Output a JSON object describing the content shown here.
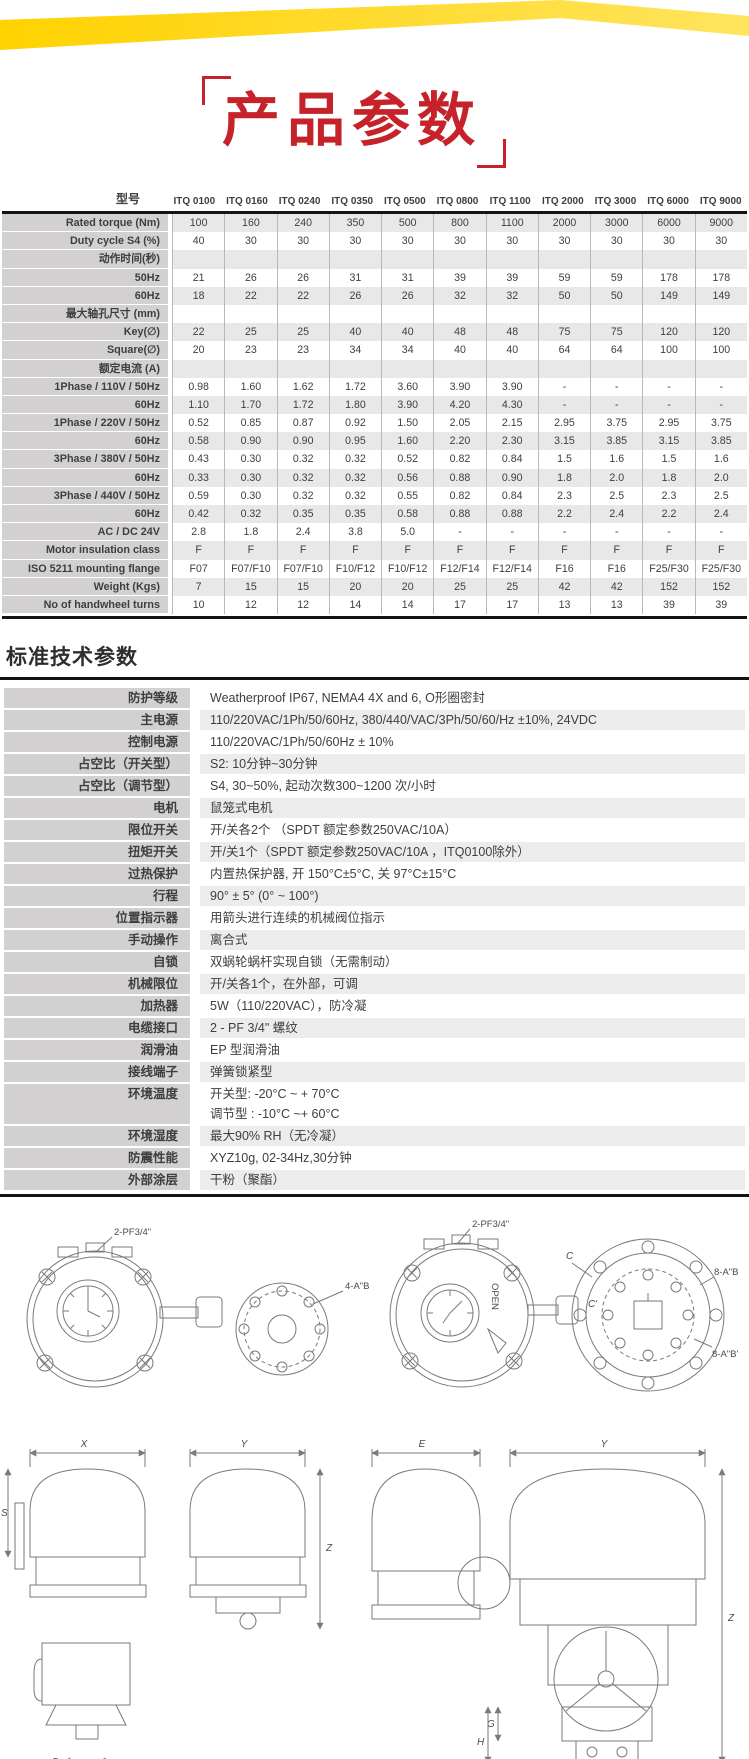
{
  "page": {
    "accent_yellow": "#ffd200",
    "title_red": "#c5222a",
    "label_gray": "#d2d0d0",
    "stripe_gray": "#e9e8e8"
  },
  "title": {
    "text": "产品参数"
  },
  "spec_table": {
    "header_label": "型号",
    "models": [
      "ITQ 0100",
      "ITQ 0160",
      "ITQ 0240",
      "ITQ 0350",
      "ITQ 0500",
      "ITQ 0800",
      "ITQ 1100",
      "ITQ 2000",
      "ITQ 3000",
      "ITQ 6000",
      "ITQ 9000"
    ],
    "rows": [
      {
        "label": "Rated torque (Nm)",
        "type": "data",
        "values": [
          "100",
          "160",
          "240",
          "350",
          "500",
          "800",
          "1100",
          "2000",
          "3000",
          "6000",
          "9000"
        ]
      },
      {
        "label": "Duty cycle S4 (%)",
        "type": "data",
        "values": [
          "40",
          "30",
          "30",
          "30",
          "30",
          "30",
          "30",
          "30",
          "30",
          "30",
          "30"
        ]
      },
      {
        "label": "动作时间(秒)",
        "type": "group",
        "values": []
      },
      {
        "label": "50Hz",
        "type": "data",
        "values": [
          "21",
          "26",
          "26",
          "31",
          "31",
          "39",
          "39",
          "59",
          "59",
          "178",
          "178"
        ]
      },
      {
        "label": "60Hz",
        "type": "data",
        "values": [
          "18",
          "22",
          "22",
          "26",
          "26",
          "32",
          "32",
          "50",
          "50",
          "149",
          "149"
        ]
      },
      {
        "label": "最大轴孔尺寸 (mm)",
        "type": "group",
        "values": []
      },
      {
        "label": "Key(∅)",
        "type": "data",
        "values": [
          "22",
          "25",
          "25",
          "40",
          "40",
          "48",
          "48",
          "75",
          "75",
          "120",
          "120"
        ]
      },
      {
        "label": "Square(∅)",
        "type": "data",
        "values": [
          "20",
          "23",
          "23",
          "34",
          "34",
          "40",
          "40",
          "64",
          "64",
          "100",
          "100"
        ]
      },
      {
        "label": "额定电流 (A)",
        "type": "group",
        "values": []
      },
      {
        "label": "1Phase / 110V / 50Hz",
        "type": "data",
        "values": [
          "0.98",
          "1.60",
          "1.62",
          "1.72",
          "3.60",
          "3.90",
          "3.90",
          "-",
          "-",
          "-",
          "-"
        ]
      },
      {
        "label": "60Hz",
        "type": "data",
        "values": [
          "1.10",
          "1.70",
          "1.72",
          "1.80",
          "3.90",
          "4.20",
          "4.30",
          "-",
          "-",
          "-",
          "-"
        ]
      },
      {
        "label": "1Phase / 220V / 50Hz",
        "type": "data",
        "values": [
          "0.52",
          "0.85",
          "0.87",
          "0.92",
          "1.50",
          "2.05",
          "2.15",
          "2.95",
          "3.75",
          "2.95",
          "3.75"
        ]
      },
      {
        "label": "60Hz",
        "type": "data",
        "values": [
          "0.58",
          "0.90",
          "0.90",
          "0.95",
          "1.60",
          "2.20",
          "2.30",
          "3.15",
          "3.85",
          "3.15",
          "3.85"
        ]
      },
      {
        "label": "3Phase / 380V / 50Hz",
        "type": "data",
        "values": [
          "0.43",
          "0.30",
          "0.32",
          "0.32",
          "0.52",
          "0.82",
          "0.84",
          "1.5",
          "1.6",
          "1.5",
          "1.6"
        ]
      },
      {
        "label": "60Hz",
        "type": "data",
        "values": [
          "0.33",
          "0.30",
          "0.32",
          "0.32",
          "0.56",
          "0.88",
          "0.90",
          "1.8",
          "2.0",
          "1.8",
          "2.0"
        ]
      },
      {
        "label": "3Phase / 440V / 50Hz",
        "type": "data",
        "values": [
          "0.59",
          "0.30",
          "0.32",
          "0.32",
          "0.55",
          "0.82",
          "0.84",
          "2.3",
          "2.5",
          "2.3",
          "2.5"
        ]
      },
      {
        "label": "60Hz",
        "type": "data",
        "values": [
          "0.42",
          "0.32",
          "0.35",
          "0.35",
          "0.58",
          "0.88",
          "0.88",
          "2.2",
          "2.4",
          "2.2",
          "2.4"
        ]
      },
      {
        "label": "AC / DC 24V",
        "type": "data",
        "values": [
          "2.8",
          "1.8",
          "2.4",
          "3.8",
          "5.0",
          "-",
          "-",
          "-",
          "-",
          "-",
          "-"
        ]
      },
      {
        "label": "Motor insulation class",
        "type": "data",
        "values": [
          "F",
          "F",
          "F",
          "F",
          "F",
          "F",
          "F",
          "F",
          "F",
          "F",
          "F"
        ]
      },
      {
        "label": "ISO 5211 mounting flange",
        "type": "data",
        "values": [
          "F07",
          "F07/F10",
          "F07/F10",
          "F10/F12",
          "F10/F12",
          "F12/F14",
          "F12/F14",
          "F16",
          "F16",
          "F25/F30",
          "F25/F30"
        ]
      },
      {
        "label": "Weight (Kgs)",
        "type": "data",
        "values": [
          "7",
          "15",
          "15",
          "20",
          "20",
          "25",
          "25",
          "42",
          "42",
          "152",
          "152"
        ]
      },
      {
        "label": "No of handwheel turns",
        "type": "data",
        "values": [
          "10",
          "12",
          "12",
          "14",
          "14",
          "17",
          "17",
          "13",
          "13",
          "39",
          "39"
        ]
      }
    ]
  },
  "standard_params": {
    "title": "标准技术参数",
    "rows": [
      {
        "label": "防护等级",
        "value": "Weatherproof IP67, NEMA4 4X and 6, O形圈密封"
      },
      {
        "label": "主电源",
        "value": "110/220VAC/1Ph/50/60Hz, 380/440/VAC/3Ph/50/60/Hz ±10%, 24VDC"
      },
      {
        "label": "控制电源",
        "value": "110/220VAC/1Ph/50/60Hz ± 10%"
      },
      {
        "label": "占空比（开关型）",
        "value": "S2: 10分钟~30分钟"
      },
      {
        "label": "占空比（调节型）",
        "value": "S4, 30~50%, 起动次数300~1200 次/小时"
      },
      {
        "label": "电机",
        "value": "鼠笼式电机"
      },
      {
        "label": "限位开关",
        "value": "开/关各2个 （SPDT 额定参数250VAC/10A）"
      },
      {
        "label": "扭矩开关",
        "value": "开/关1个（SPDT 额定参数250VAC/10A ，ITQ0100除外）"
      },
      {
        "label": "过热保护",
        "value": "内置热保护器, 开 150°C±5°C, 关 97°C±15°C"
      },
      {
        "label": "行程",
        "value": "90° ± 5° (0° ~ 100°)"
      },
      {
        "label": "位置指示器",
        "value": "用箭头进行连续的机械阀位指示"
      },
      {
        "label": "手动操作",
        "value": "离合式"
      },
      {
        "label": "自锁",
        "value": "双蜗轮蜗杆实现自锁（无需制动）"
      },
      {
        "label": "机械限位",
        "value": "开/关各1个，在外部，可调"
      },
      {
        "label": "加热器",
        "value": "5W（110/220VAC），防冷凝"
      },
      {
        "label": "电缆接口",
        "value": "2 - PF 3/4\" 螺纹"
      },
      {
        "label": "润滑油",
        "value": "EP 型润滑油"
      },
      {
        "label": "接线端子",
        "value": "弹簧锁紧型"
      },
      {
        "label": "环境温度",
        "value": "开关型: -20°C ~ + 70°C",
        "value2": "调节型 : -10°C ~+ 60°C"
      },
      {
        "label": "环境湿度",
        "value": "最大90% RH（无冷凝）"
      },
      {
        "label": "防震性能",
        "value": "XYZ10g, 02-34Hz,30分钟"
      },
      {
        "label": "外部涂层",
        "value": "干粉（聚酯）"
      }
    ]
  },
  "drawings": {
    "annotations": {
      "conduit_label": "2-PF3/4\"",
      "flange_bolts_4": "4-A\"B",
      "flange_bolts_8_outer": "8-A\"B",
      "flange_bolts_8_inner": "8-A\"B'",
      "open_label": "OPEN",
      "dim_c": "C",
      "dim_c_prime": "C'",
      "dim_x": "X",
      "dim_y": "Y",
      "dim_z": "Z",
      "dim_s": "S",
      "dim_e": "E",
      "dim_d": "D",
      "dim_f": "F",
      "dim_g": "G",
      "dim_h": "H"
    }
  }
}
